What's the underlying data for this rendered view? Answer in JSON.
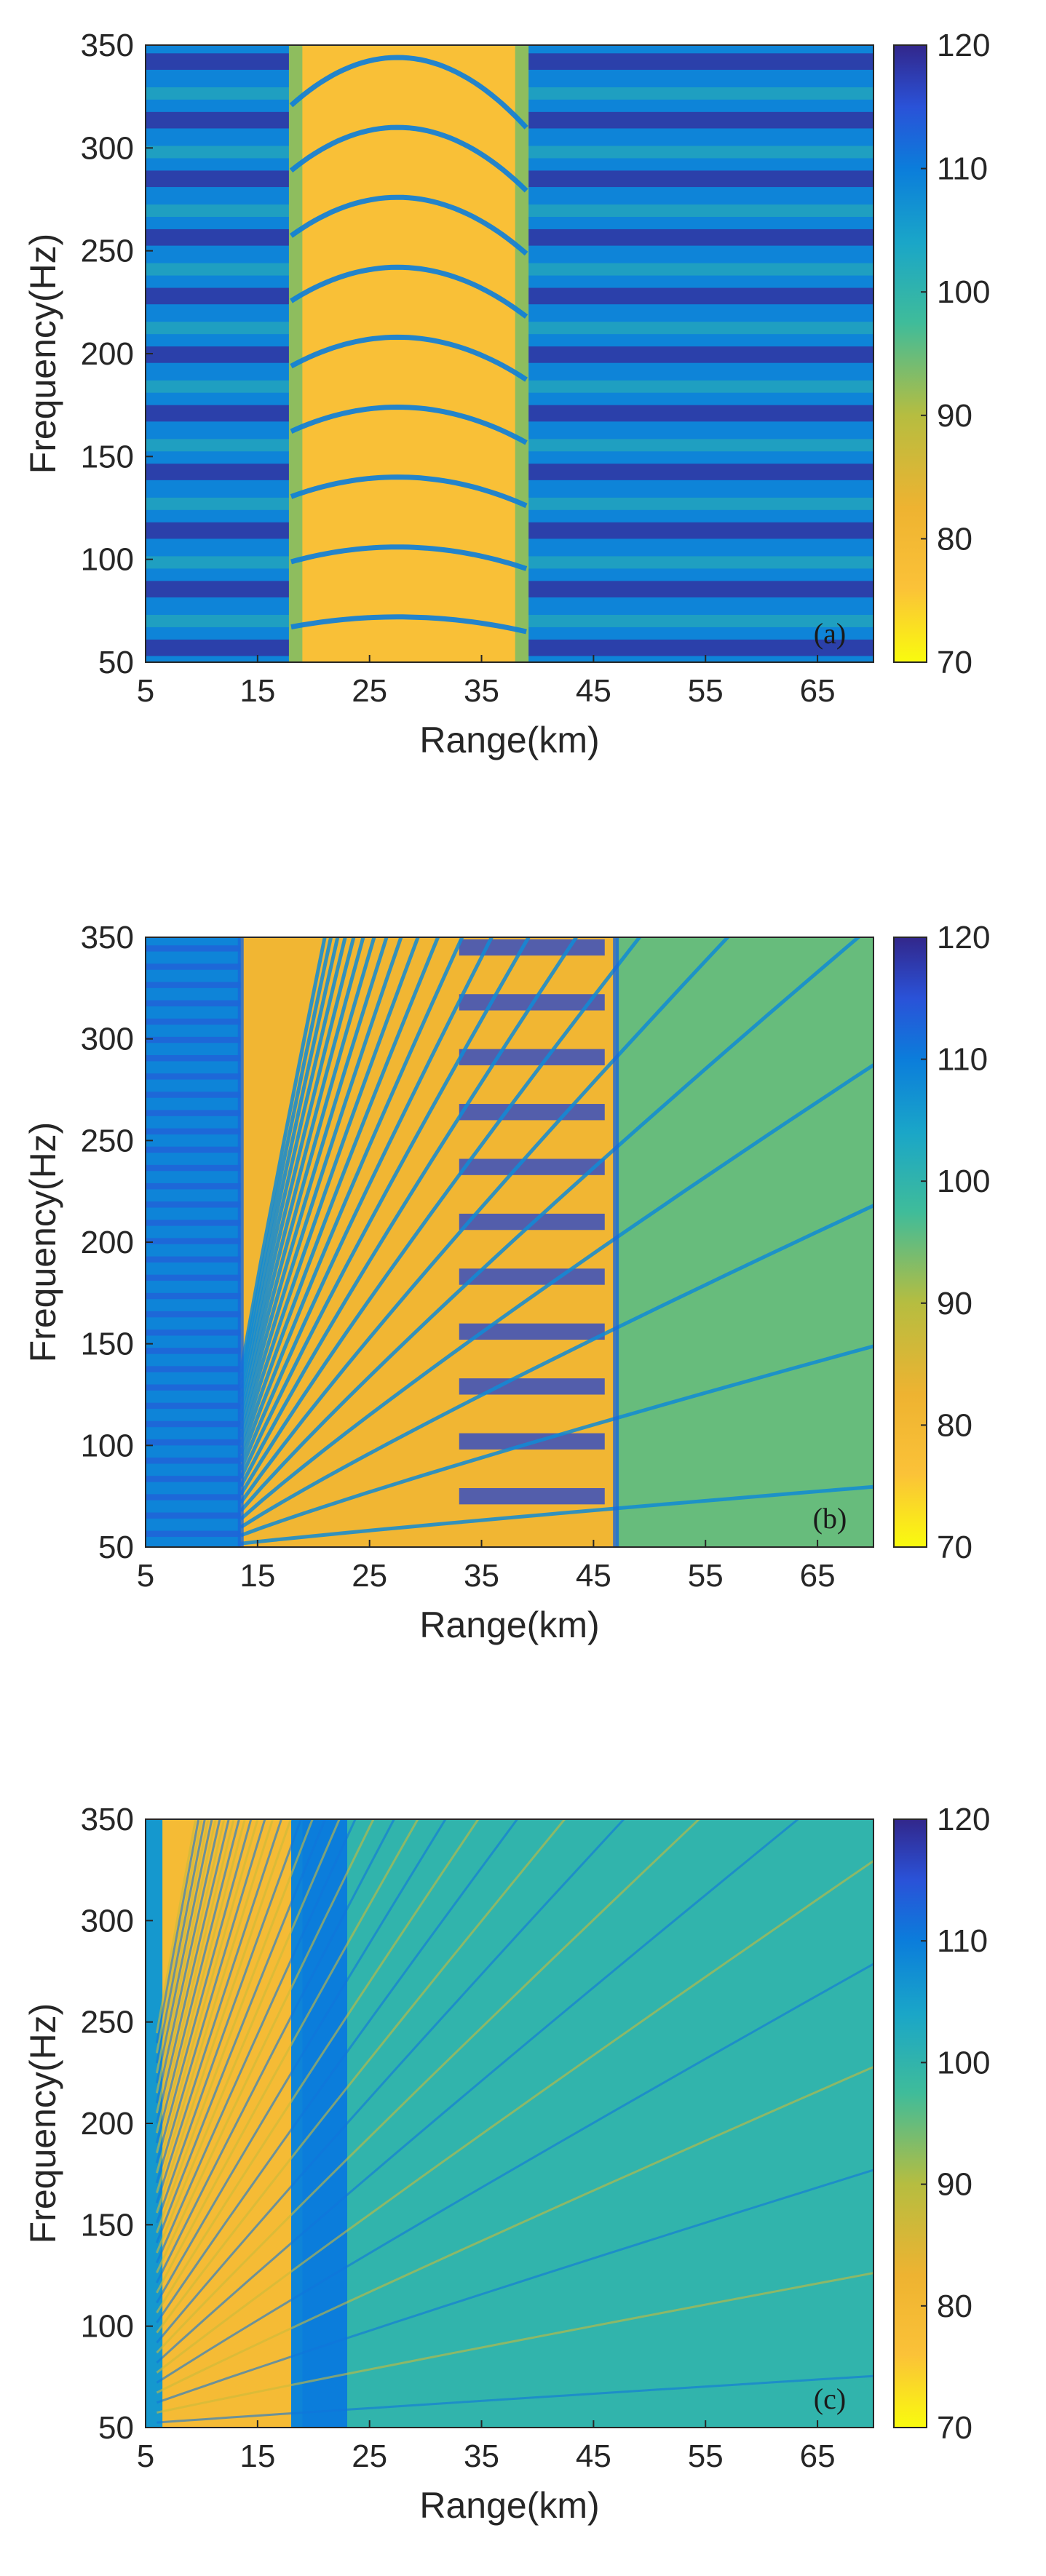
{
  "chart_data": [
    {
      "type": "heatmap",
      "panel_label": "(a)",
      "pattern": "central-arch",
      "xlabel": "Range(km)",
      "ylabel": "Frequency(Hz)",
      "xlim": [
        5,
        70
      ],
      "ylim": [
        50,
        350
      ],
      "xticks": [
        "5",
        "15",
        "25",
        "35",
        "45",
        "55",
        "65"
      ],
      "yticks": [
        "50",
        "100",
        "150",
        "200",
        "250",
        "300",
        "350"
      ],
      "colorbar": {
        "range": [
          70,
          120
        ],
        "ticks": [
          "70",
          "80",
          "90",
          "100",
          "110",
          "120"
        ]
      },
      "bright_region_km": [
        19,
        38
      ],
      "arch_peak_km": 27.5
    },
    {
      "type": "heatmap",
      "panel_label": "(b)",
      "pattern": "fan-striations",
      "xlabel": "Range(km)",
      "ylabel": "Frequency(Hz)",
      "xlim": [
        5,
        70
      ],
      "ylim": [
        50,
        350
      ],
      "xticks": [
        "5",
        "15",
        "25",
        "35",
        "45",
        "55",
        "65"
      ],
      "yticks": [
        "50",
        "100",
        "150",
        "200",
        "250",
        "300",
        "350"
      ],
      "colorbar": {
        "range": [
          70,
          120
        ],
        "ticks": [
          "70",
          "80",
          "90",
          "100",
          "110",
          "120"
        ]
      },
      "bright_region_km": [
        13.5,
        47
      ]
    },
    {
      "type": "heatmap",
      "panel_label": "(c)",
      "pattern": "dense-striations",
      "xlabel": "Range(km)",
      "ylabel": "Frequency(Hz)",
      "xlim": [
        5,
        70
      ],
      "ylim": [
        50,
        350
      ],
      "xticks": [
        "5",
        "15",
        "25",
        "35",
        "45",
        "55",
        "65"
      ],
      "yticks": [
        "50",
        "100",
        "150",
        "200",
        "250",
        "300",
        "350"
      ],
      "colorbar": {
        "range": [
          70,
          120
        ],
        "ticks": [
          "70",
          "80",
          "90",
          "100",
          "110",
          "120"
        ]
      },
      "bright_region_km": [
        6.5,
        18
      ],
      "dark_band_km": [
        19,
        23
      ]
    }
  ],
  "colormap": "parula-reversed"
}
